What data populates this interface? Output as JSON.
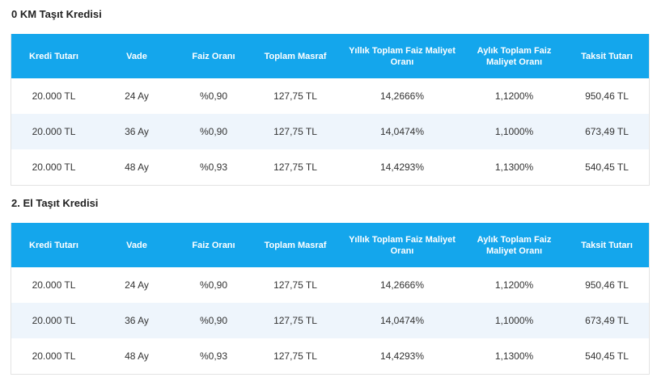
{
  "headers": [
    "Kredi Tutarı",
    "Vade",
    "Faiz Oranı",
    "Toplam Masraf",
    "Yıllık Toplam Faiz Maliyet Oranı",
    "Aylık Toplam Faiz Maliyet Oranı",
    "Taksit Tutarı"
  ],
  "sections": [
    {
      "title": "0 KM Taşıt Kredisi",
      "rows": [
        [
          "20.000 TL",
          "24 Ay",
          "%0,90",
          "127,75 TL",
          "14,2666%",
          "1,1200%",
          "950,46 TL"
        ],
        [
          "20.000 TL",
          "36 Ay",
          "%0,90",
          "127,75 TL",
          "14,0474%",
          "1,1000%",
          "673,49 TL"
        ],
        [
          "20.000 TL",
          "48 Ay",
          "%0,93",
          "127,75 TL",
          "14,4293%",
          "1,1300%",
          "540,45 TL"
        ]
      ]
    },
    {
      "title": "2. El Taşıt Kredisi",
      "rows": [
        [
          "20.000 TL",
          "24 Ay",
          "%0,90",
          "127,75 TL",
          "14,2666%",
          "1,1200%",
          "950,46 TL"
        ],
        [
          "20.000 TL",
          "36 Ay",
          "%0,90",
          "127,75 TL",
          "14,0474%",
          "1,1000%",
          "673,49 TL"
        ],
        [
          "20.000 TL",
          "48 Ay",
          "%0,93",
          "127,75 TL",
          "14,4293%",
          "1,1300%",
          "540,45 TL"
        ]
      ]
    }
  ]
}
